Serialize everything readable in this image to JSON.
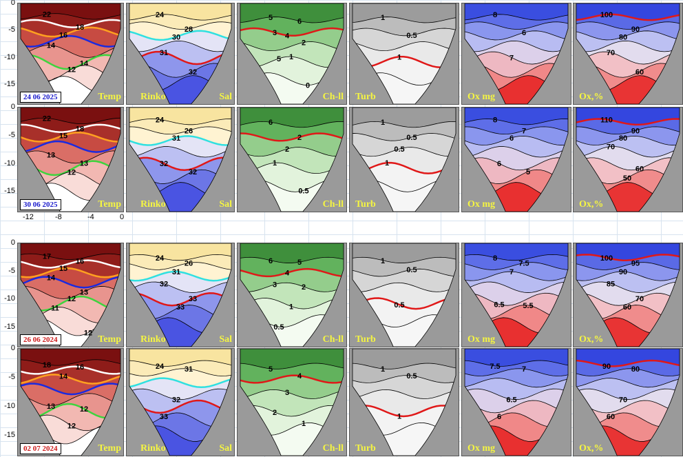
{
  "chart_data": {
    "type": "heatmap",
    "y_ticks": [
      "0",
      "-5",
      "-10",
      "-15"
    ],
    "x_ticks": [
      "-12",
      "-8",
      "-4",
      "0"
    ],
    "variables": [
      {
        "key": "temp",
        "title": "Temp",
        "palette": [
          "#7a1010",
          "#8e1c19",
          "#a8302a",
          "#c74b42",
          "#da6e66",
          "#e8948e",
          "#f2b8b2",
          "#f9dcd8",
          "#ffffff"
        ]
      },
      {
        "key": "sal",
        "title": "Sal",
        "title_left": "Rinko",
        "palette": [
          "#f8e4a0",
          "#fbebb8",
          "#fff3d2",
          "#e4e4f6",
          "#bcc0f2",
          "#8e96ec",
          "#6c76e6",
          "#4a54e2"
        ]
      },
      {
        "key": "chl",
        "title": "Ch-ll",
        "palette": [
          "#3f8f3c",
          "#62b25d",
          "#94cd8c",
          "#c2e5ba",
          "#e2f3dc",
          "#f4fbf1"
        ]
      },
      {
        "key": "turb",
        "title": "Turb",
        "palette": [
          "#9c9c9c",
          "#bcbcbc",
          "#d6d6d6",
          "#e9e9e9",
          "#f3f3f3",
          "#f6f6f6"
        ]
      },
      {
        "key": "oxmg",
        "title": "Ox mg",
        "palette": [
          "#3a4ee0",
          "#5e6ee8",
          "#8a96ee",
          "#b8bcf2",
          "#dcd0ea",
          "#eeb8c2",
          "#f08888",
          "#e83030"
        ]
      },
      {
        "key": "oxp",
        "title": "Ox,%",
        "palette": [
          "#3446df",
          "#5a6ae6",
          "#8c96ee",
          "#bcc0f2",
          "#e2dcee",
          "#f2c0c6",
          "#f08c8c",
          "#e83434"
        ]
      }
    ],
    "sections": [
      {
        "date": "24 06 2025",
        "date_color": "#1a1acc",
        "labels": {
          "temp": [
            "22",
            "18",
            "16",
            "14",
            "14",
            "12"
          ],
          "sal": [
            "24",
            "28",
            "30",
            "31",
            "32"
          ],
          "chl": [
            "5",
            "6",
            "4",
            "3",
            "2",
            "1",
            "5",
            "0"
          ],
          "turb": [
            "1",
            "0.5",
            "1"
          ],
          "oxmg": [
            "8",
            "6",
            "7"
          ],
          "oxp": [
            "100",
            "90",
            "80",
            "70",
            "60"
          ]
        }
      },
      {
        "date": "30 06 2025",
        "date_color": "#1a1acc",
        "labels": {
          "temp": [
            "22",
            "18",
            "15",
            "13",
            "13",
            "12"
          ],
          "sal": [
            "24",
            "26",
            "31",
            "32",
            "32"
          ],
          "chl": [
            "6",
            "2",
            "2",
            "1",
            "0.5"
          ],
          "turb": [
            "1",
            "0.5",
            "0.5",
            "1"
          ],
          "oxmg": [
            "8",
            "7",
            "6",
            "6",
            "5"
          ],
          "oxp": [
            "110",
            "90",
            "80",
            "70",
            "60",
            "50"
          ]
        }
      },
      {
        "date": "26 06 2024",
        "date_color": "#cc1a1a",
        "labels": {
          "temp": [
            "17",
            "16",
            "15",
            "14",
            "13",
            "12",
            "11",
            "12"
          ],
          "sal": [
            "24",
            "26",
            "31",
            "32",
            "33",
            "33"
          ],
          "chl": [
            "6",
            "5",
            "4",
            "3",
            "2",
            "1",
            "0.5"
          ],
          "turb": [
            "1",
            "0.5",
            "0.5"
          ],
          "oxmg": [
            "8",
            "7.5",
            "7",
            "6.5",
            "5.5"
          ],
          "oxp": [
            "100",
            "95",
            "90",
            "85",
            "70",
            "60"
          ]
        }
      },
      {
        "date": "02 07 2024",
        "date_color": "#cc1a1a",
        "labels": {
          "temp": [
            "18",
            "16",
            "14",
            "13",
            "12",
            "12"
          ],
          "sal": [
            "24",
            "31",
            "32",
            "33"
          ],
          "chl": [
            "5",
            "4",
            "3",
            "2",
            "1"
          ],
          "turb": [
            "1",
            "0.5",
            "1"
          ],
          "oxmg": [
            "7.5",
            "7",
            "6.5",
            "6"
          ],
          "oxp": [
            "90",
            "80",
            "70",
            "60"
          ]
        }
      }
    ],
    "highlight_colors": {
      "white": "#ffffff",
      "orange": "#ffa020",
      "blue": "#1a2ae0",
      "green": "#3ed43e",
      "cyan": "#30e0e0",
      "red": "#e01818"
    }
  }
}
